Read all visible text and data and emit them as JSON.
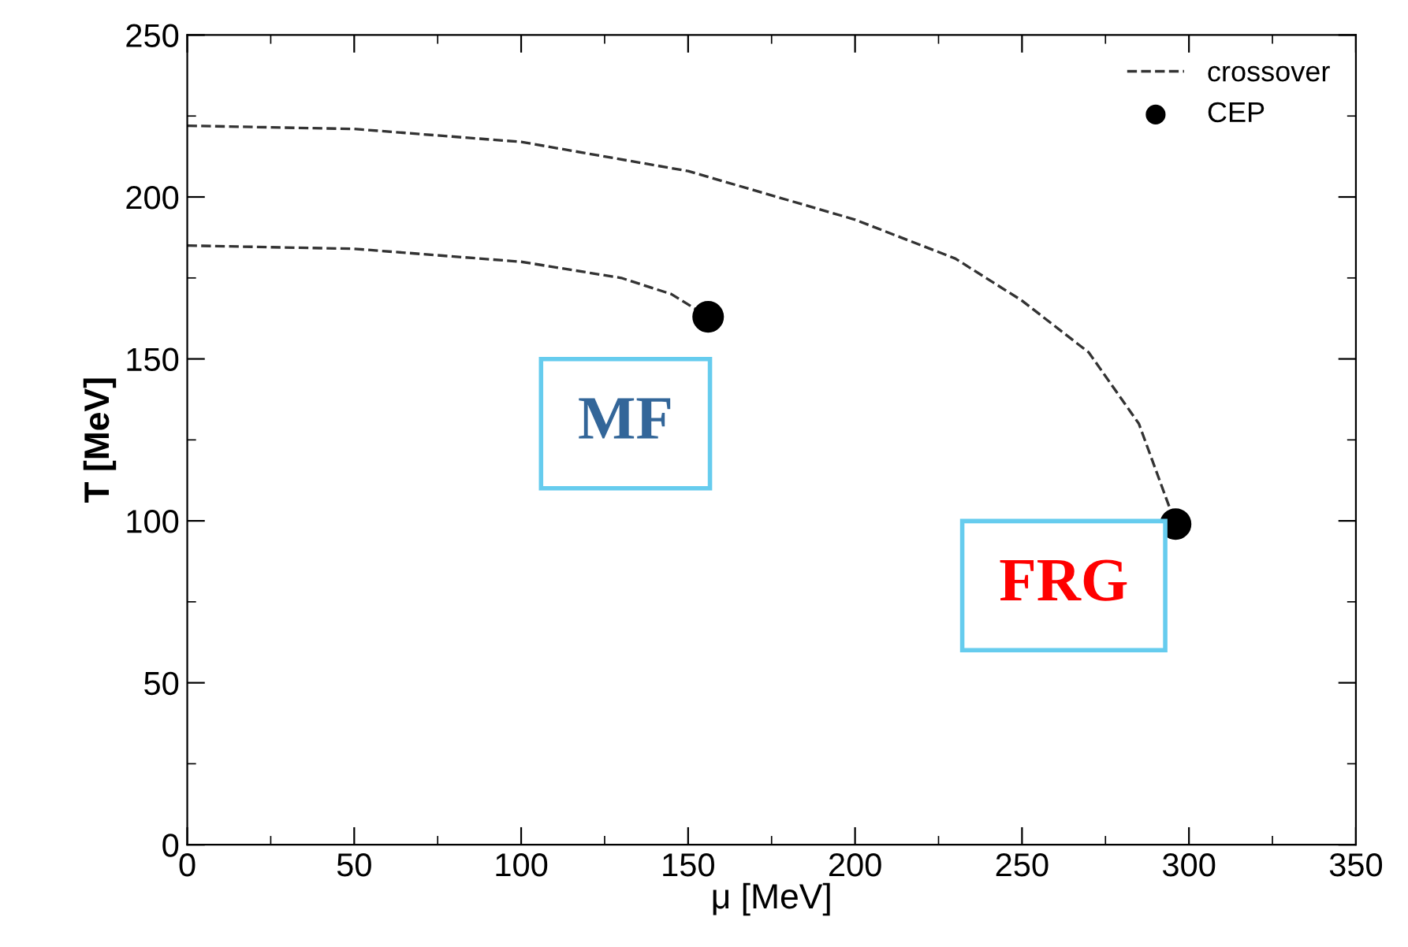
{
  "chart_data": {
    "type": "line",
    "xlabel": "μ [MeV]",
    "ylabel": "T [MeV]",
    "xlim": [
      0,
      350
    ],
    "ylim": [
      0,
      250
    ],
    "xticks": [
      0,
      50,
      100,
      150,
      200,
      250,
      300,
      350
    ],
    "yticks": [
      0,
      50,
      100,
      150,
      200,
      250
    ],
    "grid": false,
    "legend": "top right",
    "line_style": "dashed",
    "marker": "none",
    "series": [
      {
        "name": "crossover",
        "color": "#333333",
        "x": [
          0,
          50,
          100,
          150,
          200,
          230,
          250,
          270,
          285,
          296
        ],
        "values": [
          222,
          221,
          217,
          208,
          193,
          181,
          168,
          152,
          130,
          99
        ]
      },
      {
        "color": "#333333",
        "x": [
          0,
          50,
          100,
          130,
          145,
          156
        ],
        "values": [
          185,
          184,
          180,
          175,
          170,
          163
        ]
      },
      {
        "name": "CEP",
        "type": "scatter",
        "marker": "circle",
        "color": "#000000",
        "x": [
          156,
          296
        ],
        "values": [
          163,
          99
        ]
      }
    ],
    "annotations": [
      "MF",
      "FRG"
    ]
  }
}
